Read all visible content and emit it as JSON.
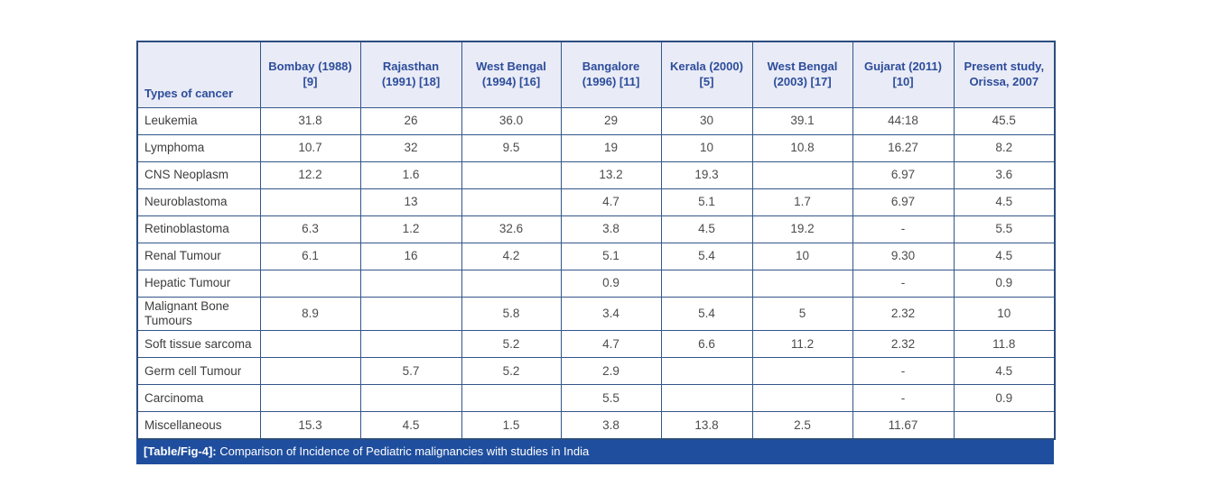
{
  "colors": {
    "header_bg": "#e9ebf6",
    "header_text": "#2d4d9b",
    "border": "#33568a",
    "caption_bg": "#1f4e9e",
    "caption_text": "#ffffff",
    "cell_text": "#4c4c4e"
  },
  "table": {
    "columns": [
      "Types of cancer",
      "Bombay (1988) [9]",
      "Rajasthan (1991) [18]",
      "West Bengal (1994) [16]",
      "Bangalore (1996) [11]",
      "Kerala (2000)[5]",
      "West Bengal (2003) [17]",
      "Gujarat (2011) [10]",
      "Present study, Orissa, 2007"
    ],
    "rows": [
      {
        "label": "Leukemia",
        "values": [
          "31.8",
          "26",
          "36.0",
          "29",
          "30",
          "39.1",
          "44:18",
          "45.5"
        ]
      },
      {
        "label": "Lymphoma",
        "values": [
          "10.7",
          "32",
          "9.5",
          "19",
          "10",
          "10.8",
          "16.27",
          "8.2"
        ]
      },
      {
        "label": "CNS Neoplasm",
        "values": [
          "12.2",
          "1.6",
          "",
          "13.2",
          "19.3",
          "",
          "6.97",
          "3.6"
        ]
      },
      {
        "label": "Neuroblastoma",
        "values": [
          "",
          "13",
          "",
          "4.7",
          "5.1",
          "1.7",
          "6.97",
          "4.5"
        ]
      },
      {
        "label": "Retinoblastoma",
        "values": [
          "6.3",
          "1.2",
          "32.6",
          "3.8",
          "4.5",
          "19.2",
          "-",
          "5.5"
        ]
      },
      {
        "label": "Renal Tumour",
        "values": [
          "6.1",
          "16",
          "4.2",
          "5.1",
          "5.4",
          "10",
          "9.30",
          "4.5"
        ]
      },
      {
        "label": "Hepatic Tumour",
        "values": [
          "",
          "",
          "",
          "0.9",
          "",
          "",
          "-",
          "0.9"
        ]
      },
      {
        "label": "Malignant Bone Tumours",
        "values": [
          "8.9",
          "",
          "5.8",
          "3.4",
          "5.4",
          "5",
          "2.32",
          "10"
        ]
      },
      {
        "label": "Soft tissue sarcoma",
        "values": [
          "",
          "",
          "5.2",
          "4.7",
          "6.6",
          "11.2",
          "2.32",
          "11.8"
        ]
      },
      {
        "label": "Germ cell Tumour",
        "values": [
          "",
          "5.7",
          "5.2",
          "2.9",
          "",
          "",
          "-",
          "4.5"
        ]
      },
      {
        "label": "Carcinoma",
        "values": [
          "",
          "",
          "",
          "5.5",
          "",
          "",
          "-",
          "0.9"
        ]
      },
      {
        "label": "Miscellaneous",
        "values": [
          "15.3",
          "4.5",
          "1.5",
          "3.8",
          "13.8",
          "2.5",
          "11.67",
          ""
        ]
      }
    ]
  },
  "caption": {
    "tag": "[Table/Fig-4]:",
    "text": " Comparison of Incidence of Pediatric malignancies with studies in India"
  }
}
